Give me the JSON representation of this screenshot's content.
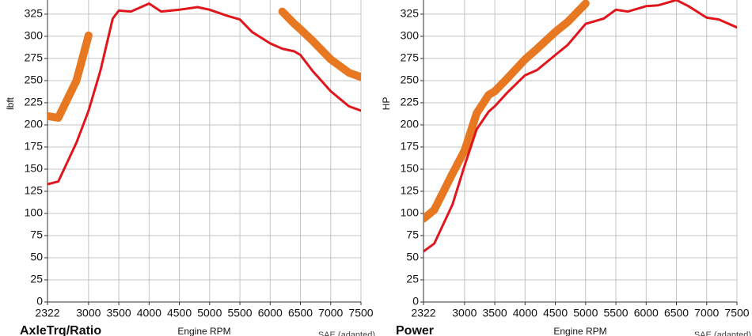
{
  "chart_data": [
    {
      "type": "line",
      "y_label": "lbft",
      "x_label": "Engine RPM",
      "bottom_title": "AxleTrq/Ratio",
      "note": "SAE (adapted)",
      "x": [
        2322,
        2500,
        2800,
        3000,
        3200,
        3400,
        3500,
        3700,
        4000,
        4200,
        4500,
        4800,
        5000,
        5300,
        5500,
        5700,
        6000,
        6200,
        6400,
        6500,
        6700,
        7000,
        7300,
        7500
      ],
      "series": [
        {
          "color": "#e87722",
          "width": 10,
          "values": [
            210,
            208,
            250,
            301,
            null,
            null,
            null,
            null,
            null,
            null,
            null,
            null,
            null,
            null,
            null,
            null,
            null,
            328,
            314,
            308,
            295,
            274,
            259,
            254
          ]
        },
        {
          "color": "#e0161c",
          "width": 3,
          "values": [
            133,
            136,
            180,
            216,
            262,
            320,
            329,
            328,
            337,
            328,
            330,
            333,
            330,
            323,
            319,
            305,
            292,
            286,
            283,
            279,
            261,
            238,
            221,
            216
          ]
        }
      ],
      "xlim": [
        2322,
        7500
      ],
      "xticks": [
        2322,
        3000,
        3500,
        4000,
        4500,
        5000,
        5500,
        6000,
        6500,
        7000,
        7500
      ],
      "ylim": [
        0,
        341
      ],
      "yticks": [
        0,
        25,
        50,
        75,
        100,
        125,
        150,
        175,
        200,
        225,
        250,
        275,
        300,
        325
      ],
      "grid": true
    },
    {
      "type": "line",
      "y_label": "HP",
      "x_label": "Engine RPM",
      "bottom_title": "Power",
      "note": "SAE (adapted)",
      "x": [
        2322,
        2500,
        2800,
        3000,
        3200,
        3400,
        3500,
        3700,
        4000,
        4200,
        4500,
        4700,
        5000,
        5300,
        5500,
        5700,
        6000,
        6200,
        6500,
        6700,
        7000,
        7200,
        7500
      ],
      "series": [
        {
          "color": "#e87722",
          "width": 10,
          "values": [
            94,
            104,
            145,
            171,
            213,
            234,
            238,
            252,
            274,
            286,
            305,
            316,
            337,
            null,
            null,
            null,
            null,
            null,
            null,
            null,
            null,
            null,
            null
          ]
        },
        {
          "color": "#e0161c",
          "width": 3,
          "values": [
            57,
            66,
            110,
            154,
            195,
            215,
            221,
            236,
            256,
            262,
            279,
            290,
            314,
            320,
            330,
            328,
            334,
            335,
            341,
            334,
            321,
            319,
            310
          ]
        }
      ],
      "xlim": [
        2322,
        7500
      ],
      "xticks": [
        2322,
        3000,
        3500,
        4000,
        4500,
        5000,
        5500,
        6000,
        6500,
        7000,
        7500
      ],
      "ylim": [
        0,
        341
      ],
      "yticks": [
        0,
        25,
        50,
        75,
        100,
        125,
        150,
        175,
        200,
        225,
        250,
        275,
        300,
        325
      ],
      "grid": true
    }
  ]
}
